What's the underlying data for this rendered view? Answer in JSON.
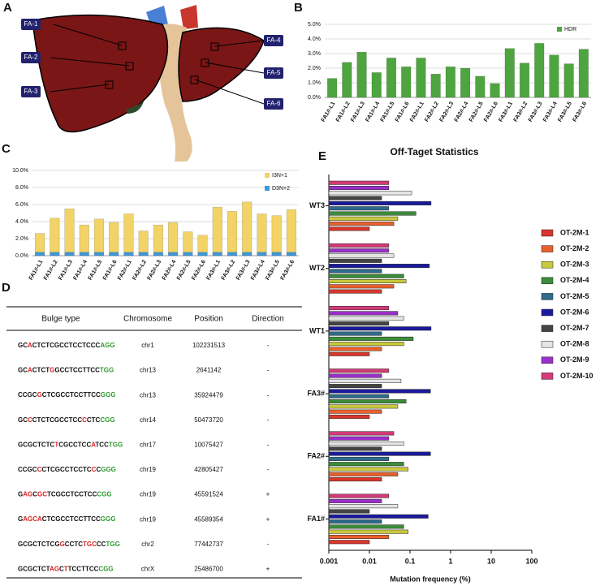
{
  "panel_a": {
    "label": "A",
    "regions": [
      "FA-1",
      "FA-2",
      "FA-3",
      "FA-4",
      "FA-5",
      "FA-6"
    ]
  },
  "chart_data": [
    {
      "type": "bar",
      "panel_label": "B",
      "categories": [
        "FA1#-L1",
        "FA1#-L2",
        "FA1#-L3",
        "FA1#-L4",
        "FA1#-L5",
        "FA1#-L6",
        "FA2#-L1",
        "FA2#-L2",
        "FA2#-L3",
        "FA2#-L4",
        "FA2#-L5",
        "FA2#-L6",
        "FA3#-L1",
        "FA3#-L2",
        "FA3#-L3",
        "FA3#-L4",
        "FA3#-L5",
        "FA3#-L6"
      ],
      "series": [
        {
          "name": "HDR",
          "color": "#4ea53f",
          "values": [
            1.3,
            2.4,
            3.1,
            1.7,
            2.7,
            2.1,
            2.7,
            1.6,
            2.1,
            2.0,
            1.45,
            0.95,
            3.35,
            2.35,
            3.7,
            2.9,
            2.3,
            3.3
          ]
        }
      ],
      "ylim": [
        0,
        5
      ],
      "yticks": [
        {
          "value": 0,
          "label": "0.0%"
        },
        {
          "value": 1,
          "label": "1.0%"
        },
        {
          "value": 2,
          "label": "2.0%"
        },
        {
          "value": 3,
          "label": "3.0%"
        },
        {
          "value": 4,
          "label": "4.0%"
        },
        {
          "value": 5,
          "label": "5.0%"
        }
      ],
      "grid": true
    },
    {
      "type": "bar",
      "panel_label": "C",
      "categories": [
        "FA1#-L1",
        "FA1#-L2",
        "FA1#-L3",
        "FA1#-L4",
        "FA1#-L5",
        "FA1#-L6",
        "FA2#-L1",
        "FA2#-L2",
        "FA2#-L3",
        "FA2#-L4",
        "FA2#-L5",
        "FA2#-L6",
        "FA3#-L1",
        "FA3#-L2",
        "FA3#-L3",
        "FA3#-L4",
        "FA3#-L5",
        "FA3#-L6"
      ],
      "series": [
        {
          "name": "D3N+2",
          "color": "#3f97d8",
          "values": [
            0.4,
            0.4,
            0.4,
            0.4,
            0.4,
            0.4,
            0.4,
            0.4,
            0.4,
            0.4,
            0.4,
            0.4,
            0.4,
            0.4,
            0.4,
            0.4,
            0.4,
            0.4
          ]
        },
        {
          "name": "I3N+1",
          "color": "#f2d366",
          "values": [
            2.2,
            4.0,
            5.1,
            3.2,
            3.9,
            3.5,
            4.5,
            2.5,
            3.2,
            3.5,
            2.4,
            2.0,
            5.3,
            4.8,
            5.9,
            4.5,
            4.3,
            5.0
          ]
        }
      ],
      "stacked": true,
      "ylim": [
        0,
        10
      ],
      "yticks": [
        {
          "value": 0,
          "label": "0.0%"
        },
        {
          "value": 2,
          "label": "2.0%"
        },
        {
          "value": 4,
          "label": "4.0%"
        },
        {
          "value": 6,
          "label": "6.0%"
        },
        {
          "value": 8,
          "label": "8.0%"
        },
        {
          "value": 10,
          "label": "10.0%"
        }
      ],
      "grid": true
    },
    {
      "type": "horizontal_bar",
      "panel_label": "E",
      "title": "Off-Taget  Statistics",
      "x_label": "Mutation frequency (%)",
      "xscale": "log",
      "categories": [
        "WT3",
        "WT2",
        "WT1",
        "FA3#",
        "FA2#",
        "FA1#"
      ],
      "series": [
        {
          "name": "OT-2M-1",
          "color": "#d9362b",
          "values": [
            0.01,
            0.02,
            0.01,
            0.01,
            0.02,
            0.01
          ]
        },
        {
          "name": "OT-2M-2",
          "color": "#e8602c",
          "values": [
            0.04,
            0.04,
            0.02,
            0.02,
            0.05,
            0.03
          ]
        },
        {
          "name": "OT-2M-3",
          "color": "#c9c83c",
          "values": [
            0.05,
            0.08,
            0.07,
            0.05,
            0.09,
            0.09
          ]
        },
        {
          "name": "OT-2M-4",
          "color": "#3b8c3a",
          "values": [
            0.14,
            0.07,
            0.12,
            0.08,
            0.07,
            0.07
          ]
        },
        {
          "name": "OT-2M-5",
          "color": "#2f6b8a",
          "values": [
            0.03,
            0.02,
            0.02,
            0.03,
            0.03,
            0.02
          ]
        },
        {
          "name": "OT-2M-6",
          "color": "#1a1a9c",
          "values": [
            0.33,
            0.3,
            0.33,
            0.32,
            0.32,
            0.28
          ]
        },
        {
          "name": "OT-2M-7",
          "color": "#444444",
          "values": [
            0.02,
            0.02,
            0.03,
            0.02,
            0.02,
            0.01
          ]
        },
        {
          "name": "OT-2M-8",
          "color": "#e4e4e4",
          "values": [
            0.11,
            0.04,
            0.07,
            0.06,
            0.07,
            0.05
          ]
        },
        {
          "name": "OT-2M-9",
          "color": "#9b2fc9",
          "values": [
            0.03,
            0.03,
            0.05,
            0.02,
            0.03,
            0.02
          ]
        },
        {
          "name": "OT-2M-10",
          "color": "#d43a78",
          "values": [
            0.03,
            0.03,
            0.03,
            0.03,
            0.04,
            0.03
          ]
        }
      ],
      "xlim": [
        0.001,
        100
      ],
      "xticks": [
        0.001,
        0.01,
        0.1,
        1,
        10,
        100
      ]
    }
  ],
  "panel_d": {
    "label": "D",
    "table": {
      "header": [
        "Bulge type",
        "Chromosome",
        "Position",
        "Direction"
      ],
      "rows": [
        [
          [
            {
              "text": "GC",
              "color": "#111111"
            },
            {
              "text": "A",
              "color": "#e02020"
            },
            {
              "text": "CTCTCGCCTCCTCCC",
              "color": "#111111"
            },
            {
              "text": "AGG",
              "color": "#2e9a2e"
            }
          ],
          "chr1",
          102231513,
          "-"
        ],
        [
          [
            {
              "text": "GC",
              "color": "#111111"
            },
            {
              "text": "A",
              "color": "#e02020"
            },
            {
              "text": "CTCT",
              "color": "#111111"
            },
            {
              "text": "G",
              "color": "#e02020"
            },
            {
              "text": "GCCTCCTTCC",
              "color": "#111111"
            },
            {
              "text": "TGG",
              "color": "#2e9a2e"
            }
          ],
          "chr13",
          2641142,
          "-"
        ],
        [
          [
            {
              "text": "CCGC",
              "color": "#111111"
            },
            {
              "text": "G",
              "color": "#e02020"
            },
            {
              "text": "CTCGCCTCCTTCC",
              "color": "#111111"
            },
            {
              "text": "GGG",
              "color": "#2e9a2e"
            }
          ],
          "chr13",
          35924479,
          "-"
        ],
        [
          [
            {
              "text": "GC",
              "color": "#111111"
            },
            {
              "text": "C",
              "color": "#e02020"
            },
            {
              "text": "CTCTCGCCTCC",
              "color": "#111111"
            },
            {
              "text": "C",
              "color": "#e02020"
            },
            {
              "text": "CTC",
              "color": "#111111"
            },
            {
              "text": "CGG",
              "color": "#2e9a2e"
            }
          ],
          "chr14",
          50473720,
          "-"
        ],
        [
          [
            {
              "text": "GCGCTCTC",
              "color": "#111111"
            },
            {
              "text": "T",
              "color": "#e02020"
            },
            {
              "text": "CGCCTCC",
              "color": "#111111"
            },
            {
              "text": "A",
              "color": "#e02020"
            },
            {
              "text": "TCC",
              "color": "#111111"
            },
            {
              "text": "TGG",
              "color": "#2e9a2e"
            }
          ],
          "chr17",
          10075427,
          "-"
        ],
        [
          [
            {
              "text": "CCGC",
              "color": "#111111"
            },
            {
              "text": "C",
              "color": "#e02020"
            },
            {
              "text": "CTCGCCTCCTC",
              "color": "#111111"
            },
            {
              "text": "C",
              "color": "#e02020"
            },
            {
              "text": "C",
              "color": "#111111"
            },
            {
              "text": "GGG",
              "color": "#2e9a2e"
            }
          ],
          "chr19",
          42805427,
          "-"
        ],
        [
          [
            {
              "text": "G",
              "color": "#111111"
            },
            {
              "text": "AG",
              "color": "#e02020"
            },
            {
              "text": "C",
              "color": "#111111"
            },
            {
              "text": "GC",
              "color": "#e02020"
            },
            {
              "text": "TCGCCTCCTCC",
              "color": "#111111"
            },
            {
              "text": "CGG",
              "color": "#2e9a2e"
            }
          ],
          "chr19",
          45591524,
          "+"
        ],
        [
          [
            {
              "text": "G",
              "color": "#111111"
            },
            {
              "text": "AGCA",
              "color": "#e02020"
            },
            {
              "text": "CTCGCCTCCTTCC",
              "color": "#111111"
            },
            {
              "text": "GGG",
              "color": "#2e9a2e"
            }
          ],
          "chr19",
          45589354,
          "+"
        ],
        [
          [
            {
              "text": "GCGCTCTCG",
              "color": "#111111"
            },
            {
              "text": "G",
              "color": "#e02020"
            },
            {
              "text": "CCTC",
              "color": "#111111"
            },
            {
              "text": "TGC",
              "color": "#e02020"
            },
            {
              "text": "CC",
              "color": "#111111"
            },
            {
              "text": "TGG",
              "color": "#2e9a2e"
            }
          ],
          "chr2",
          77442737,
          "-"
        ],
        [
          [
            {
              "text": "GCGCTCT",
              "color": "#111111"
            },
            {
              "text": "AG",
              "color": "#e02020"
            },
            {
              "text": "C",
              "color": "#111111"
            },
            {
              "text": "T",
              "color": "#e02020"
            },
            {
              "text": "TCCTTCC",
              "color": "#111111"
            },
            {
              "text": "CGG",
              "color": "#2e9a2e"
            }
          ],
          "chrX",
          25486700,
          "+"
        ]
      ]
    }
  }
}
